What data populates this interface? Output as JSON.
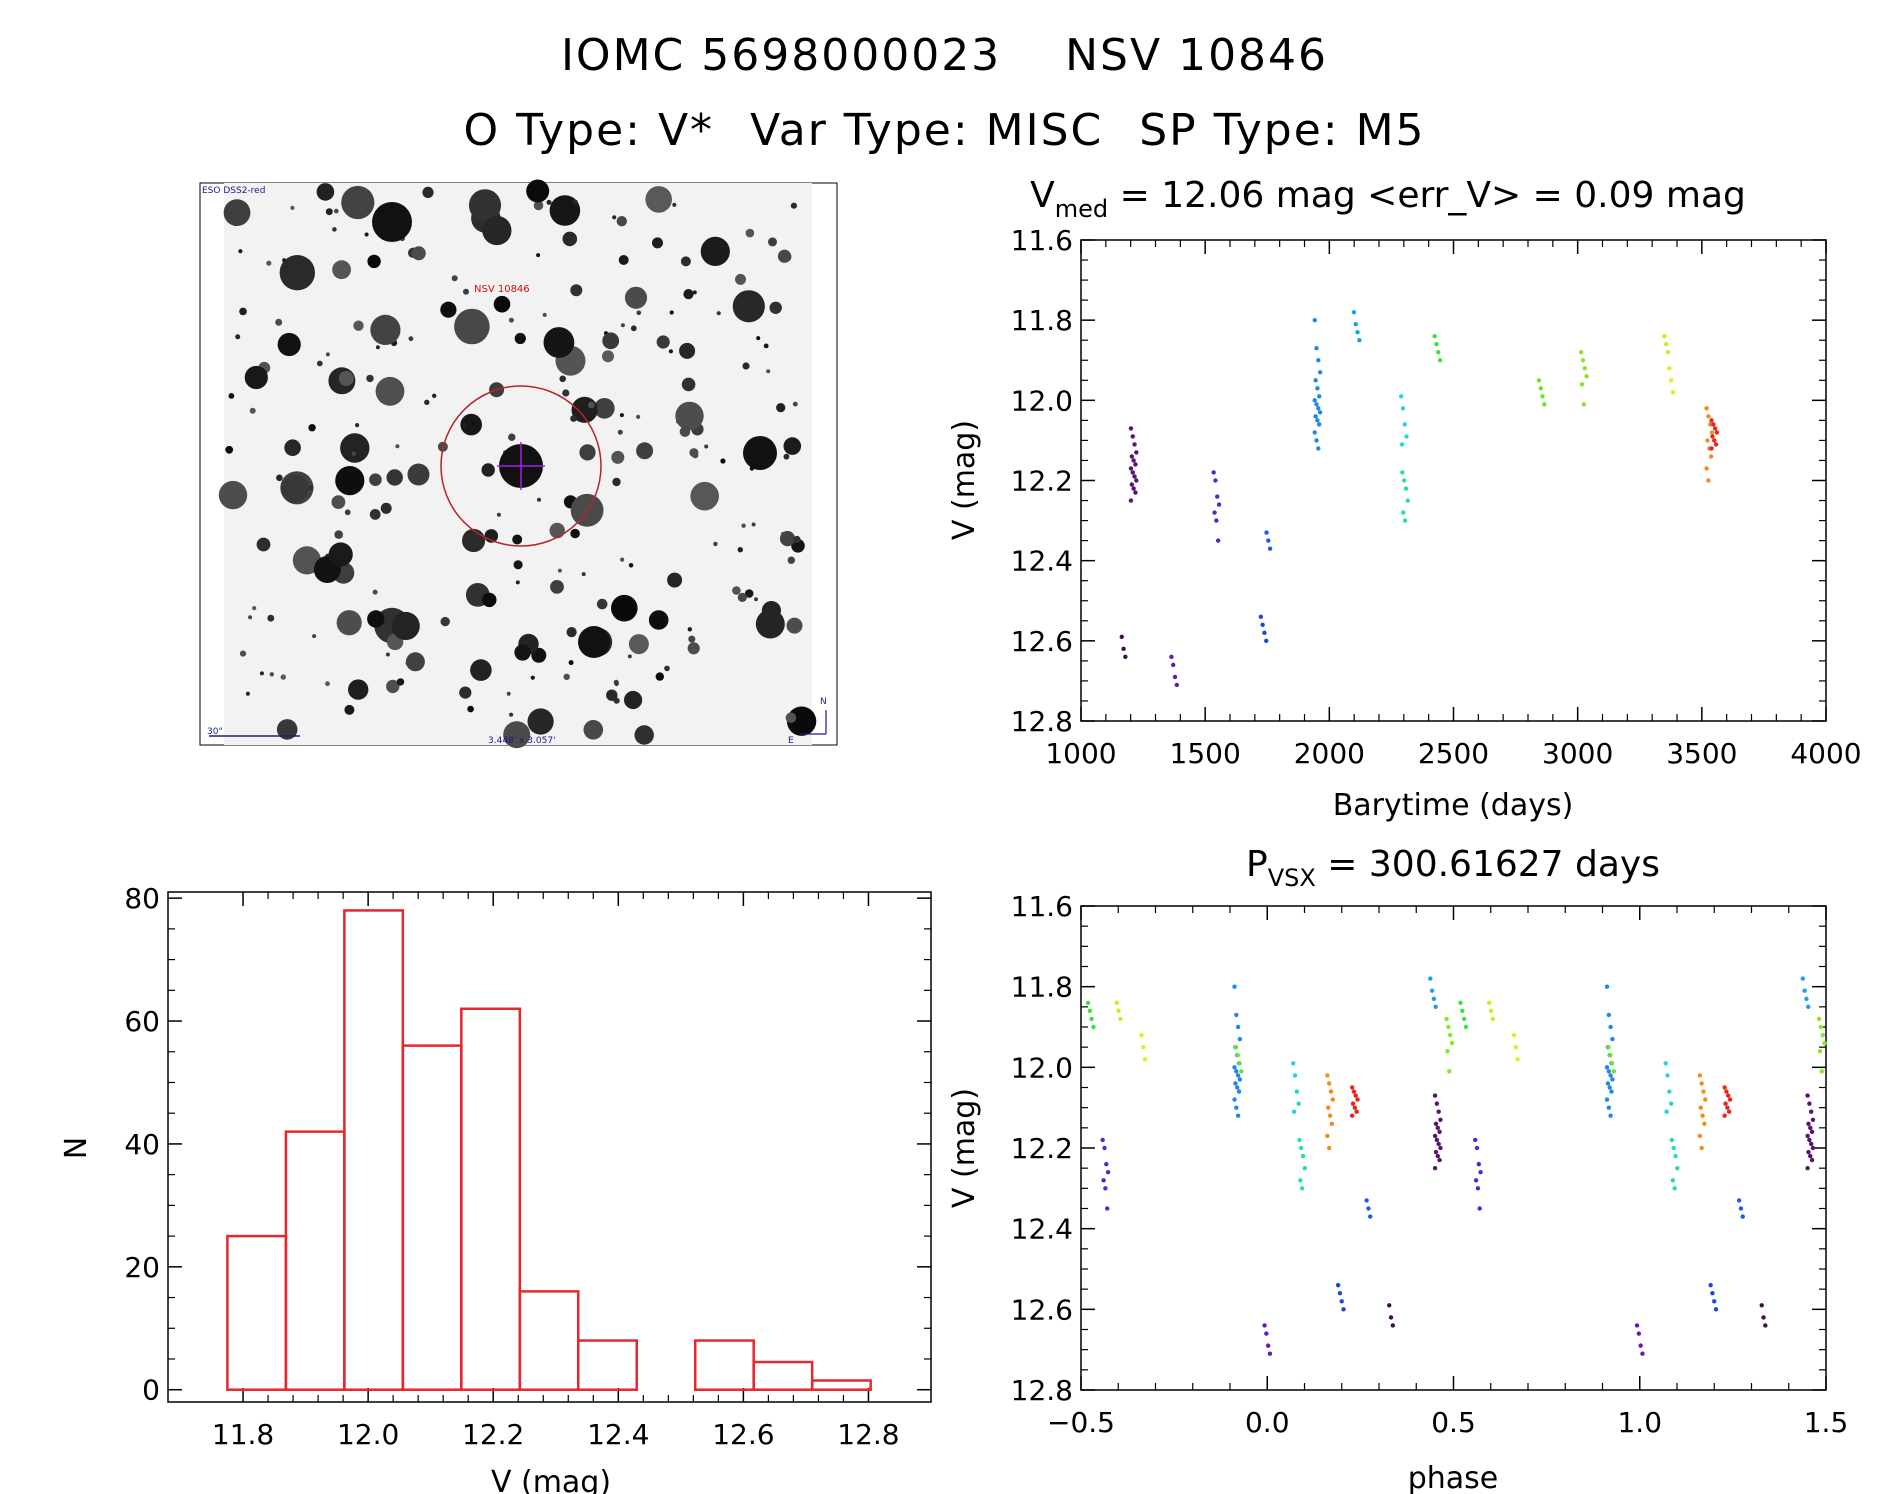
{
  "header": {
    "line1_id": "IOMC 5698000023",
    "line1_name": "NSV 10846",
    "line2_otype": "O Type: V*",
    "line2_vartype": "Var Type: MISC",
    "line2_sptype": "SP Type: M5"
  },
  "sky_image": {
    "survey_label": "ESO DSS2-red",
    "target_label": "NSV 10846",
    "scale_label": "30\"",
    "size_label": "3.448' x 3.057'",
    "north_label": "N",
    "east_label": "E"
  },
  "colors": {
    "histogram": "#e8262d",
    "frame": "#000000",
    "marker_circle": "#b3262d",
    "crosshair": "#a020f0"
  },
  "chart_data": [
    {
      "id": "lightcurve",
      "type": "scatter",
      "title_main": "V",
      "title_sub": "med",
      "title_rest": " =  12.06 mag <err_V> = 0.09 mag",
      "xlabel": "Barytime (days)",
      "ylabel": "V (mag)",
      "xlim": [
        1000,
        4000
      ],
      "ylim": [
        11.6,
        12.8
      ],
      "y_inverted": true,
      "xticks": [
        1000,
        1500,
        2000,
        2500,
        3000,
        3500,
        4000
      ],
      "xtick_labels": [
        "1000",
        "1500",
        "2000",
        "2500",
        "3000",
        "3500",
        "4000"
      ],
      "yticks": [
        11.6,
        11.8,
        12.0,
        12.2,
        12.4,
        12.6,
        12.8
      ],
      "ytick_labels": [
        "11.6",
        "11.8",
        "12.0",
        "12.2",
        "12.4",
        "12.6",
        "12.8"
      ],
      "groups": [
        {
          "t": 1175,
          "v": [
            12.59,
            12.62,
            12.64
          ],
          "color": "#3d0f4a"
        },
        {
          "t": 1212,
          "v": [
            12.07,
            12.09,
            12.11,
            12.13,
            12.14,
            12.15,
            12.16,
            12.17,
            12.18,
            12.19,
            12.2,
            12.21,
            12.22,
            12.23,
            12.25
          ],
          "color": "#5b1270"
        },
        {
          "t": 1375,
          "v": [
            12.64,
            12.66,
            12.69,
            12.71
          ],
          "color": "#6a1aa8"
        },
        {
          "t": 1545,
          "v": [
            12.18,
            12.2,
            12.24,
            12.26,
            12.28,
            12.3,
            12.35
          ],
          "color": "#4b2bd0"
        },
        {
          "t": 1735,
          "v": [
            12.54,
            12.56,
            12.58,
            12.6
          ],
          "color": "#2046d8"
        },
        {
          "t": 1758,
          "v": [
            12.33,
            12.35,
            12.37
          ],
          "color": "#1f5de0"
        },
        {
          "t": 1952,
          "v": [
            11.8,
            11.87,
            11.9,
            11.93,
            11.95,
            11.97,
            11.99,
            12.0,
            12.01,
            12.02,
            12.03,
            12.04,
            12.05,
            12.06,
            12.08,
            12.1,
            12.12
          ],
          "color": "#1e88e5"
        },
        {
          "t": 2110,
          "v": [
            11.78,
            11.81,
            11.83,
            11.85
          ],
          "color": "#1ea0e8"
        },
        {
          "t": 2300,
          "v": [
            11.99,
            12.02,
            12.06,
            12.09,
            12.11
          ],
          "color": "#22d8d0"
        },
        {
          "t": 2305,
          "v": [
            12.18,
            12.2,
            12.22,
            12.25,
            12.28,
            12.3
          ],
          "color": "#27e0a0"
        },
        {
          "t": 2435,
          "v": [
            11.84,
            11.86,
            11.88,
            11.9
          ],
          "color": "#3ae23a"
        },
        {
          "t": 2855,
          "v": [
            11.95,
            11.97,
            11.99,
            12.01
          ],
          "color": "#5fe82a"
        },
        {
          "t": 3025,
          "v": [
            11.88,
            11.9,
            11.92,
            11.94,
            11.96,
            12.01
          ],
          "color": "#86e820"
        },
        {
          "t": 3360,
          "v": [
            11.84,
            11.86,
            11.88
          ],
          "color": "#d4e81c"
        },
        {
          "t": 3380,
          "v": [
            11.92,
            11.95,
            11.98
          ],
          "color": "#e8e81c"
        },
        {
          "t": 3530,
          "v": [
            12.02,
            12.04,
            12.06,
            12.08,
            12.1,
            12.12,
            12.14,
            12.17,
            12.2
          ],
          "color": "#f58a1e"
        },
        {
          "t": 3550,
          "v": [
            12.05,
            12.06,
            12.07,
            12.08,
            12.09,
            12.1,
            12.11,
            12.12
          ],
          "color": "#e8261e"
        }
      ]
    },
    {
      "id": "histogram",
      "type": "bar",
      "xlabel": "V (mag)",
      "ylabel": "N",
      "xlim": [
        11.68,
        12.9
      ],
      "ylim": [
        -2,
        81
      ],
      "bin_width": 0.0935,
      "bin_starts": [
        11.775,
        11.8685,
        11.962,
        12.0555,
        12.149,
        12.2425,
        12.336,
        12.4295,
        12.523,
        12.6165,
        12.71
      ],
      "values": [
        25,
        42,
        78,
        56,
        62,
        16,
        8,
        0,
        8,
        4.5,
        1.5
      ],
      "xticks": [
        11.8,
        12.0,
        12.2,
        12.4,
        12.6,
        12.8
      ],
      "xtick_labels": [
        "11.8",
        "12.0",
        "12.2",
        "12.4",
        "12.6",
        "12.8"
      ],
      "yticks": [
        0,
        20,
        40,
        60,
        80
      ],
      "ytick_labels": [
        "0",
        "20",
        "40",
        "60",
        "80"
      ]
    },
    {
      "id": "phased",
      "type": "scatter",
      "title_main": "P",
      "title_sub": "VSX",
      "title_rest": " =  300.61627 days",
      "period": 300.61627,
      "t0": 1375,
      "xlabel": "phase",
      "ylabel": "V (mag)",
      "xlim": [
        -0.5,
        1.5
      ],
      "ylim": [
        11.6,
        12.8
      ],
      "y_inverted": true,
      "xticks": [
        -0.5,
        0.0,
        0.5,
        1.0,
        1.5
      ],
      "xtick_labels": [
        "−0.5",
        "0.0",
        "0.5",
        "1.0",
        "1.5"
      ],
      "yticks": [
        11.6,
        11.8,
        12.0,
        12.2,
        12.4,
        12.6,
        12.8
      ],
      "ytick_labels": [
        "11.6",
        "11.8",
        "12.0",
        "12.2",
        "12.4",
        "12.6",
        "12.8"
      ]
    }
  ]
}
